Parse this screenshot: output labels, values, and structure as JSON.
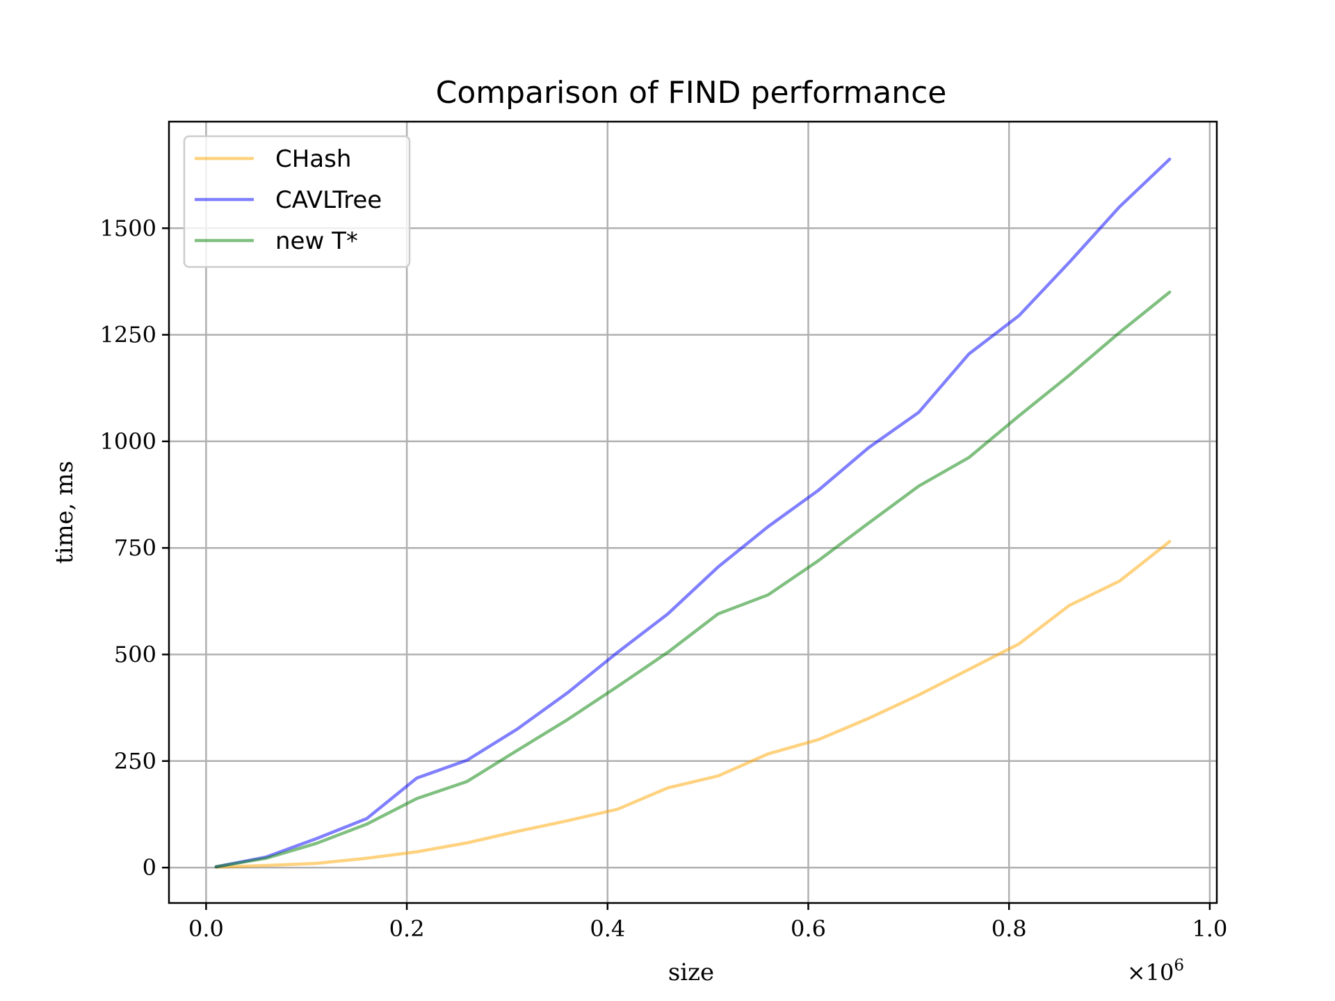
{
  "chart_data": {
    "type": "line",
    "title": "Comparison of FIND performance",
    "xlabel": "size",
    "ylabel": "time, ms",
    "x_offset_label": "×10",
    "x_offset_exponent": "6",
    "xlim": [
      -0.037,
      1.007
    ],
    "ylim": [
      -83,
      1750
    ],
    "xticks": [
      0.0,
      0.2,
      0.4,
      0.6,
      0.8,
      1.0
    ],
    "xtick_labels": [
      "0.0",
      "0.2",
      "0.4",
      "0.6",
      "0.8",
      "1.0"
    ],
    "yticks": [
      0,
      250,
      500,
      750,
      1000,
      1250,
      1500
    ],
    "ytick_labels": [
      "0",
      "250",
      "500",
      "750",
      "1000",
      "1250",
      "1500"
    ],
    "grid": true,
    "legend_position": "top-left",
    "x": [
      0.01,
      0.06,
      0.11,
      0.16,
      0.21,
      0.26,
      0.31,
      0.36,
      0.41,
      0.46,
      0.51,
      0.56,
      0.61,
      0.66,
      0.71,
      0.76,
      0.81,
      0.86,
      0.91,
      0.96
    ],
    "series": [
      {
        "name": "CHash",
        "color": "#ffa500",
        "opacity": 0.5,
        "values": [
          1,
          5,
          10,
          22,
          37,
          58,
          85,
          110,
          137,
          187,
          215,
          267,
          300,
          350,
          405,
          465,
          525,
          615,
          672,
          765
        ]
      },
      {
        "name": "CAVLTree",
        "color": "#0000ff",
        "opacity": 0.5,
        "values": [
          2,
          25,
          68,
          115,
          210,
          252,
          325,
          410,
          505,
          595,
          705,
          800,
          885,
          985,
          1068,
          1205,
          1295,
          1420,
          1550,
          1662
        ]
      },
      {
        "name": "new T*",
        "color": "#008000",
        "opacity": 0.5,
        "values": [
          2,
          22,
          57,
          102,
          162,
          202,
          275,
          347,
          425,
          505,
          595,
          640,
          720,
          808,
          895,
          962,
          1060,
          1155,
          1255,
          1350
        ]
      }
    ]
  }
}
